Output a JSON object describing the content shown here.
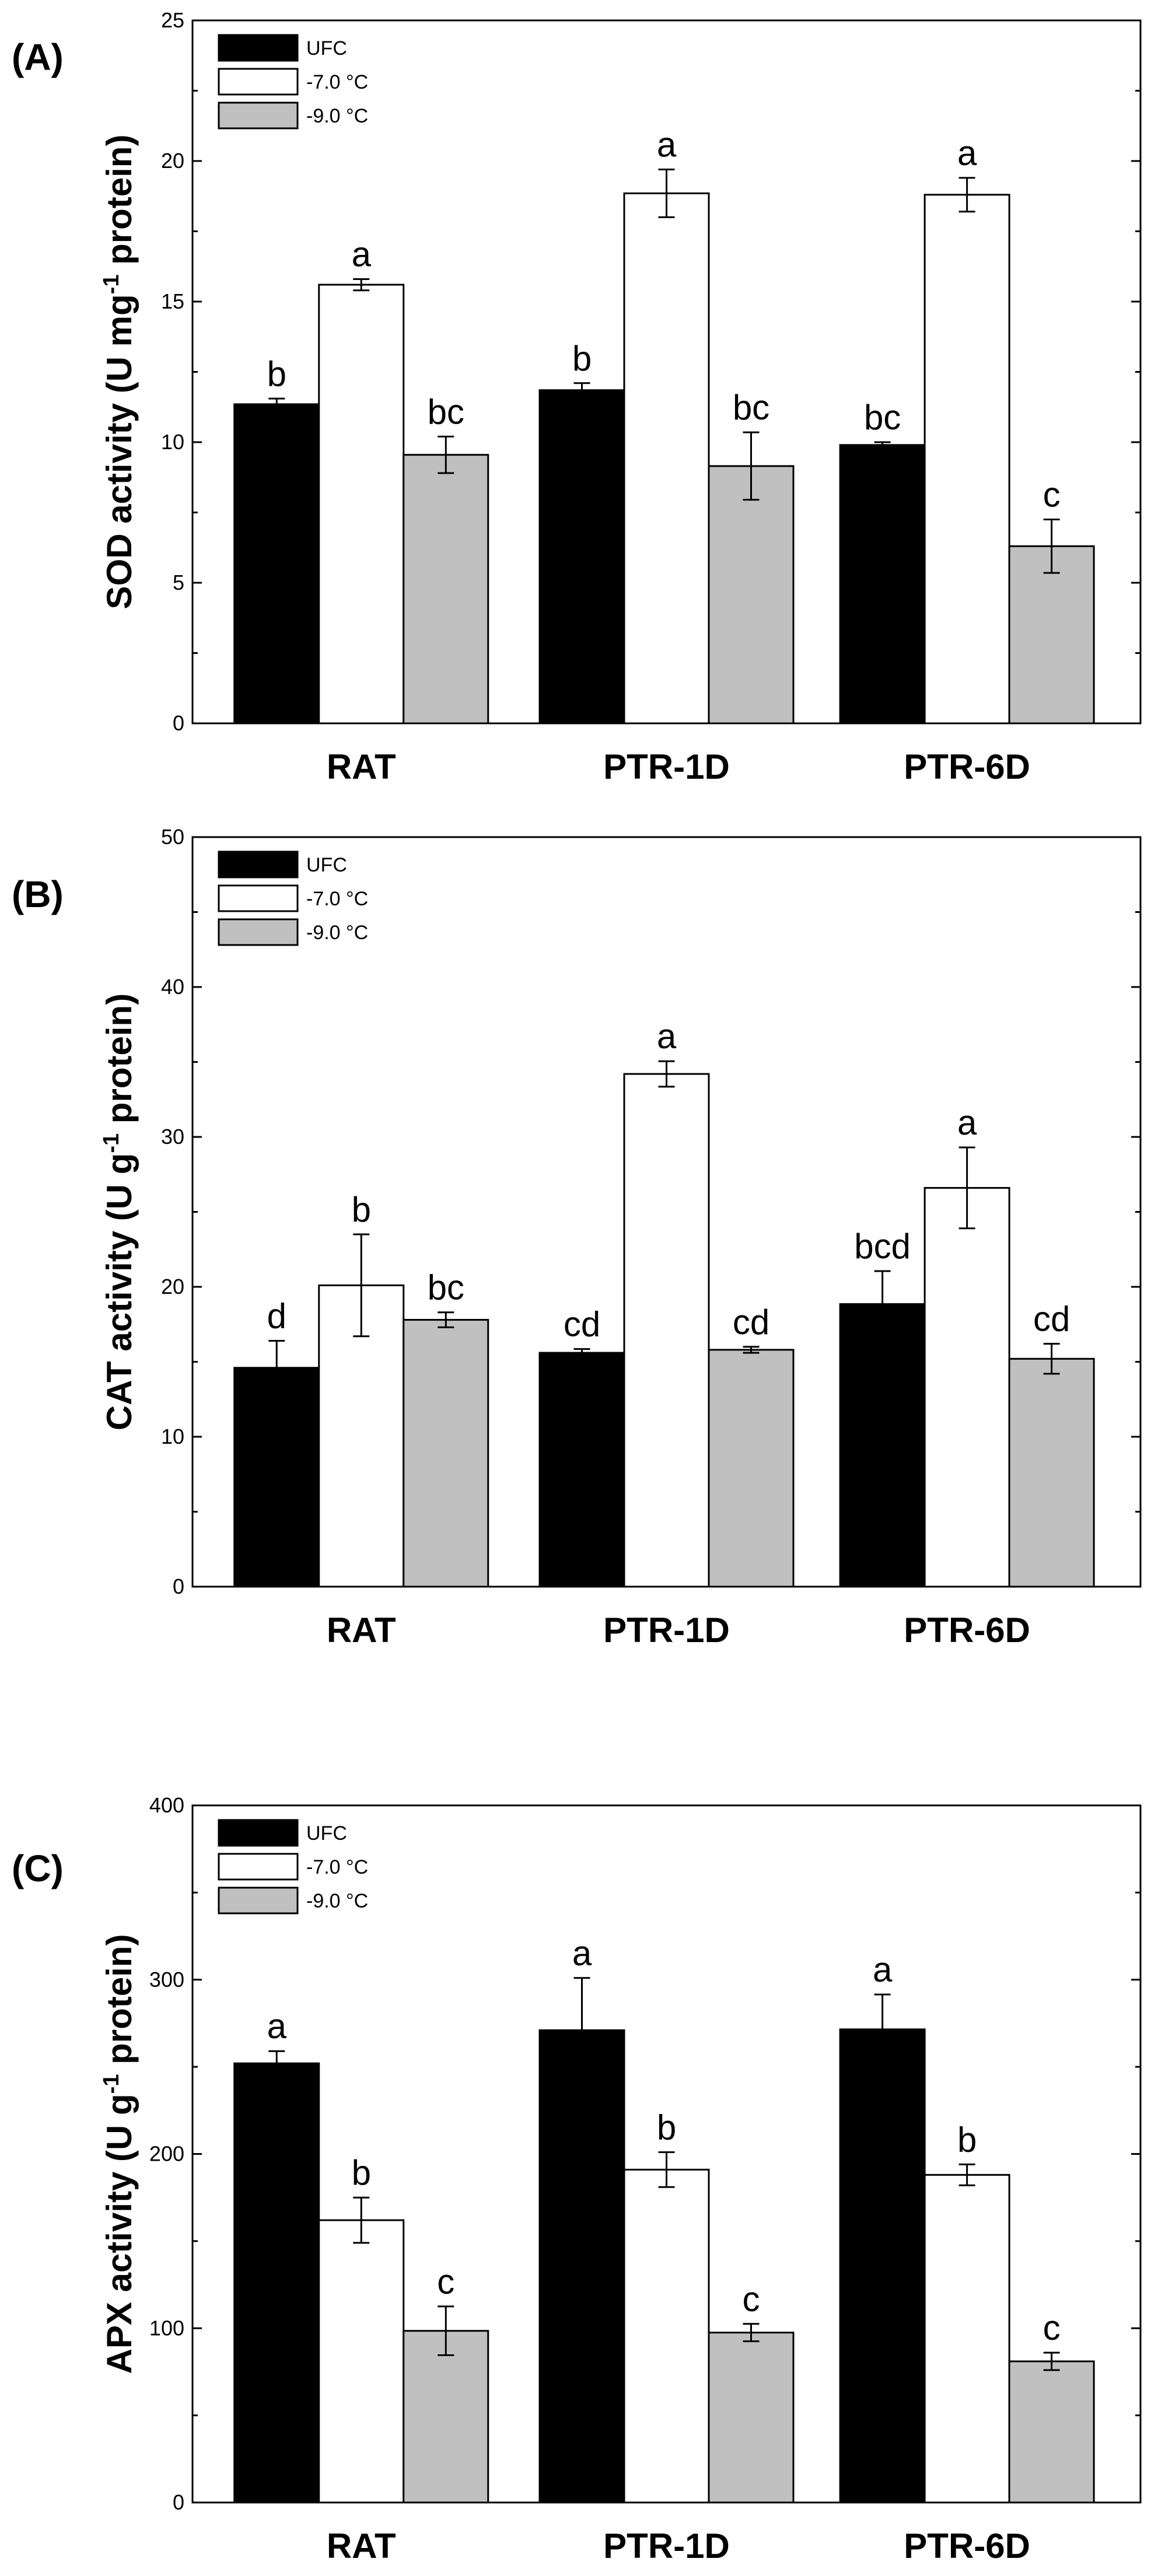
{
  "chart_data": [
    {
      "type": "bar",
      "panel_label": "(A)",
      "ylabel_main": "SOD activity (U mg",
      "ylabel_sup": "-1",
      "ylabel_tail": " protein)",
      "ylim": [
        0,
        25
      ],
      "yticks": [
        0,
        5,
        10,
        15,
        20,
        25
      ],
      "categories": [
        "RAT",
        "PTR-1D",
        "PTR-6D"
      ],
      "legend_placement": "top-left",
      "series": [
        {
          "name": "UFC",
          "color": "#000000",
          "values": [
            11.35,
            11.85,
            9.9
          ],
          "errors": [
            0.2,
            0.25,
            0.1
          ],
          "letters": [
            "b",
            "b",
            "bc"
          ]
        },
        {
          "name": "-7.0 °C",
          "color": "#ffffff",
          "values": [
            15.6,
            18.85,
            18.8
          ],
          "errors": [
            0.2,
            0.85,
            0.6
          ],
          "letters": [
            "a",
            "a",
            "a"
          ]
        },
        {
          "name": "-9.0 °C",
          "color": "#c0c0c0",
          "values": [
            9.55,
            9.15,
            6.3
          ],
          "errors": [
            0.65,
            1.2,
            0.95
          ],
          "letters": [
            "bc",
            "bc",
            "c"
          ]
        }
      ]
    },
    {
      "type": "bar",
      "panel_label": "(B)",
      "ylabel_main": "CAT activity (U g",
      "ylabel_sup": "-1",
      "ylabel_tail": " protein)",
      "ylim": [
        0,
        50
      ],
      "yticks": [
        0,
        10,
        20,
        30,
        40,
        50
      ],
      "categories": [
        "RAT",
        "PTR-1D",
        "PTR-6D"
      ],
      "legend_placement": "top-left",
      "series": [
        {
          "name": "UFC",
          "color": "#000000",
          "values": [
            14.6,
            15.6,
            18.85
          ],
          "errors": [
            1.8,
            0.25,
            2.2
          ],
          "letters": [
            "d",
            "cd",
            "bcd"
          ]
        },
        {
          "name": "-7.0 °C",
          "color": "#ffffff",
          "values": [
            20.1,
            34.2,
            26.6
          ],
          "errors": [
            3.4,
            0.85,
            2.7
          ],
          "letters": [
            "b",
            "a",
            "a"
          ]
        },
        {
          "name": "-9.0 °C",
          "color": "#c0c0c0",
          "values": [
            17.8,
            15.8,
            15.2
          ],
          "errors": [
            0.5,
            0.2,
            1.0
          ],
          "letters": [
            "bc",
            "cd",
            "cd"
          ]
        }
      ]
    },
    {
      "type": "bar",
      "panel_label": "(C)",
      "ylabel_main": "APX activity (U g",
      "ylabel_sup": "-1",
      "ylabel_tail": " protein)",
      "ylim": [
        0,
        400
      ],
      "yticks": [
        0,
        100,
        200,
        300,
        400
      ],
      "categories": [
        "RAT",
        "PTR-1D",
        "PTR-6D"
      ],
      "legend_placement": "top-left",
      "series": [
        {
          "name": "UFC",
          "color": "#000000",
          "values": [
            252,
            271,
            271.5
          ],
          "errors": [
            7,
            30,
            20
          ],
          "letters": [
            "a",
            "a",
            "a"
          ]
        },
        {
          "name": "-7.0 °C",
          "color": "#ffffff",
          "values": [
            162,
            191,
            188
          ],
          "errors": [
            13,
            10,
            6
          ],
          "letters": [
            "b",
            "b",
            "b"
          ]
        },
        {
          "name": "-9.0 °C",
          "color": "#c0c0c0",
          "values": [
            98.5,
            97.5,
            81
          ],
          "errors": [
            14,
            5,
            5
          ],
          "letters": [
            "c",
            "c",
            "c"
          ]
        }
      ]
    }
  ]
}
